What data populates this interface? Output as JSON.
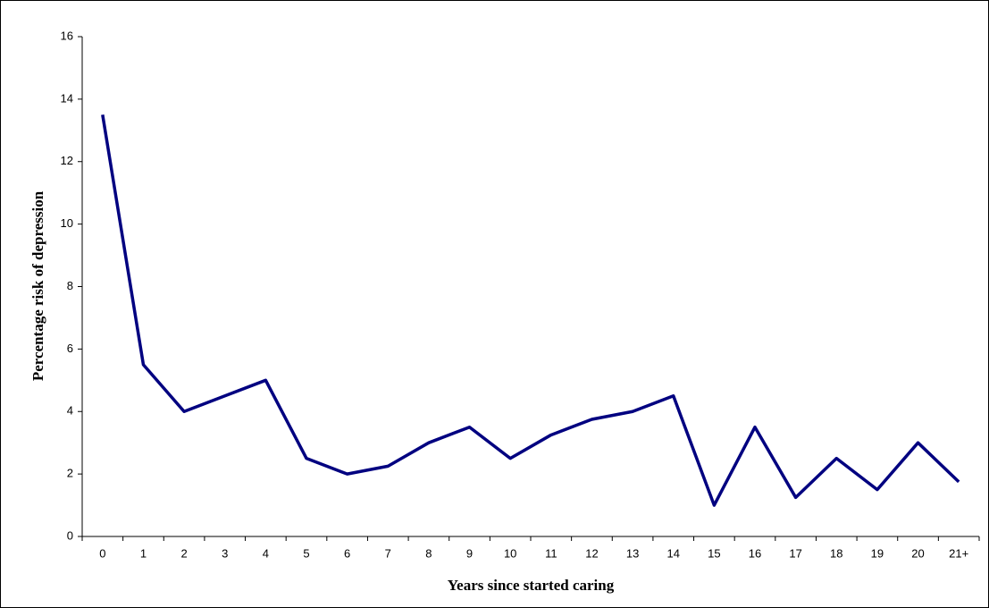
{
  "chart_data": {
    "type": "line",
    "x_label": "Years since started caring",
    "y_label": "Percentage risk of depression",
    "categories": [
      "0",
      "1",
      "2",
      "3",
      "4",
      "5",
      "6",
      "7",
      "8",
      "9",
      "10",
      "11",
      "12",
      "13",
      "14",
      "15",
      "16",
      "17",
      "18",
      "19",
      "20",
      "21+"
    ],
    "series": [
      {
        "color": "#000080",
        "values": [
          13.5,
          5.5,
          4,
          4.5,
          5,
          2.5,
          2,
          2.25,
          3,
          3.5,
          2.5,
          3.25,
          3.75,
          4,
          4.5,
          1,
          3.5,
          1.25,
          2.5,
          1.5,
          3,
          1.75
        ]
      }
    ],
    "ylim": [
      0,
      16
    ],
    "yticks": [
      0,
      2,
      4,
      6,
      8,
      10,
      12,
      14,
      16
    ],
    "grid": false
  }
}
